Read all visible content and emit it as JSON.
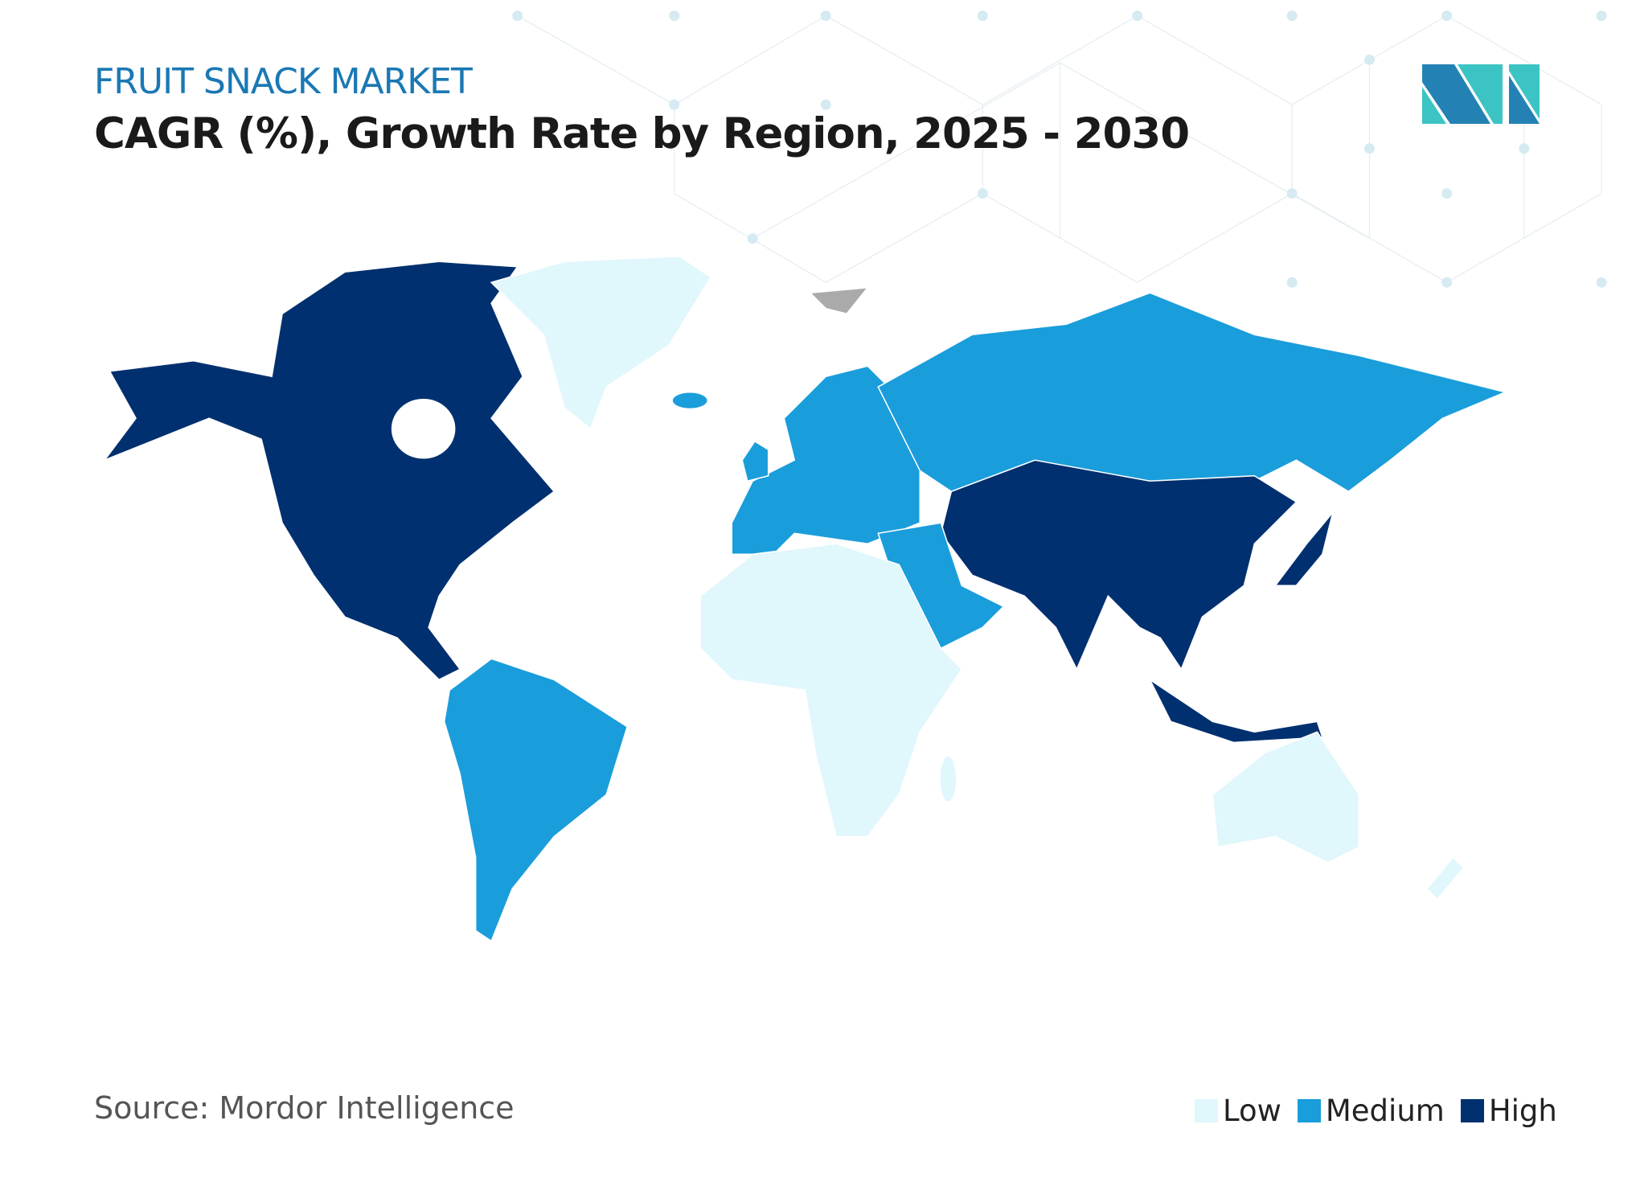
{
  "header": {
    "kicker": "FRUIT SNACK MARKET",
    "title": "CAGR (%), Growth Rate by Region, 2025 - 2030"
  },
  "footer": {
    "source": "Source: Mordor Intelligence"
  },
  "legend": [
    {
      "label": "Low",
      "color": "#e0f7fc"
    },
    {
      "label": "Medium",
      "color": "#1a9ddb"
    },
    {
      "label": "High",
      "color": "#00306f"
    }
  ],
  "regions": [
    {
      "name": "North America",
      "level": "High"
    },
    {
      "name": "Greenland",
      "level": "Low"
    },
    {
      "name": "South America",
      "level": "Medium"
    },
    {
      "name": "Europe",
      "level": "Medium"
    },
    {
      "name": "Russia",
      "level": "Medium"
    },
    {
      "name": "Asia",
      "level": "High"
    },
    {
      "name": "Middle East",
      "level": "Medium"
    },
    {
      "name": "Africa",
      "level": "Low"
    },
    {
      "name": "Southeast Asia",
      "level": "High"
    },
    {
      "name": "Japan",
      "level": "High"
    },
    {
      "name": "Australia",
      "level": "Low"
    },
    {
      "name": "New Zealand",
      "level": "Low"
    },
    {
      "name": "Iceland",
      "level": "Medium"
    },
    {
      "name": "Madagascar",
      "level": "Low"
    }
  ],
  "logo": {
    "text": "Mordor Intelligence",
    "colors": [
      "#2481b4",
      "#3cc4c4"
    ]
  }
}
